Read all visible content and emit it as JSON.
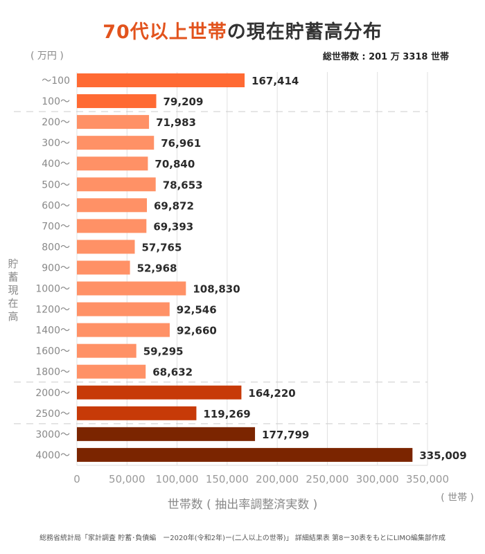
{
  "title_highlight": "70代以上世帯",
  "title_rest": "の現在貯蓄高分布",
  "unit_y": "( 万円 )",
  "total_households": "総世帯数 : 201 万 3318 世帯",
  "source": "総務省統計局「家計調査 貯蓄･負債編　ー2020年(令和2年)ー(二人以上の世帯)」 詳細結果表 第8ー30表をもとにLIMO編集部作成",
  "chart_data": {
    "type": "bar",
    "orientation": "horizontal",
    "title": "70代以上世帯の現在貯蓄高分布",
    "xlabel": "世帯数 ( 抽出率調整済実数 )",
    "xunit": "( 世帯 )",
    "ylabel": "貯蓄現在高",
    "xlim": [
      0,
      350000
    ],
    "xticks": [
      0,
      50000,
      100000,
      150000,
      200000,
      250000,
      300000,
      350000
    ],
    "xtick_labels": [
      "0",
      "50,000",
      "100,000",
      "150,000",
      "200,000",
      "250,000",
      "300,000",
      "350,000"
    ],
    "grid": true,
    "categories": [
      "～100",
      "100～",
      "200～",
      "300～",
      "400～",
      "500～",
      "600～",
      "700～",
      "800～",
      "900～",
      "1000～",
      "1200～",
      "1400～",
      "1600～",
      "1800～",
      "2000～",
      "2500～",
      "3000～",
      "4000～"
    ],
    "values": [
      167414,
      79209,
      71983,
      76961,
      70840,
      78653,
      69872,
      69393,
      57765,
      52968,
      108830,
      92546,
      92660,
      59295,
      68632,
      164220,
      119269,
      177799,
      335009
    ],
    "value_labels": [
      "167,414",
      "79,209",
      "71,983",
      "76,961",
      "70,840",
      "78,653",
      "69,872",
      "69,393",
      "57,765",
      "52,968",
      "108,830",
      "92,546",
      "92,660",
      "59,295",
      "68,632",
      "164,220",
      "119,269",
      "177,799",
      "335,009"
    ],
    "group_colors": [
      "#ff6a33",
      "#ff6a33",
      "#ff9166",
      "#ff9166",
      "#ff9166",
      "#ff9166",
      "#ff9166",
      "#ff9166",
      "#ff9166",
      "#ff9166",
      "#ff9166",
      "#ff9166",
      "#ff9166",
      "#ff9166",
      "#ff9166",
      "#c73a08",
      "#c73a08",
      "#7b2500",
      "#7b2500"
    ],
    "group_separators_after": [
      "100～",
      "1800～",
      "2500～"
    ]
  }
}
